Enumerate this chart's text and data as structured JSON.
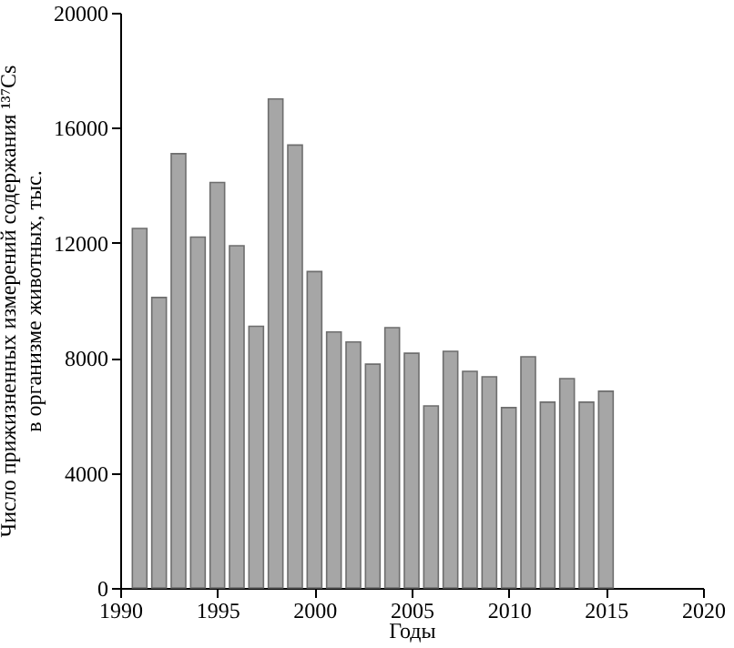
{
  "chart_data": {
    "type": "bar",
    "xlabel": "Годы",
    "ylabel": "Число прижизненных измерений содержания ¹³⁷Cs в организме животных, тыс.",
    "x": [
      1991,
      1992,
      1993,
      1994,
      1995,
      1996,
      1997,
      1998,
      1999,
      2000,
      2001,
      2002,
      2003,
      2004,
      2005,
      2006,
      2007,
      2008,
      2009,
      2010,
      2011,
      2012,
      2013,
      2014,
      2015
    ],
    "values": [
      12500,
      10100,
      15100,
      12200,
      14100,
      11900,
      9100,
      17000,
      15400,
      11000,
      8900,
      8550,
      7780,
      9050,
      8160,
      6330,
      8230,
      7530,
      7340,
      6270,
      8040,
      6460,
      7280,
      6460,
      6840
    ],
    "color": "#a6a6a6",
    "xlim": [
      1990,
      2020
    ],
    "xticks": [
      1990,
      1995,
      2000,
      2005,
      2010,
      2015,
      2020
    ],
    "ylim": [
      0,
      20000
    ],
    "yticks": [
      0,
      4000,
      8000,
      12000,
      16000,
      20000
    ]
  }
}
